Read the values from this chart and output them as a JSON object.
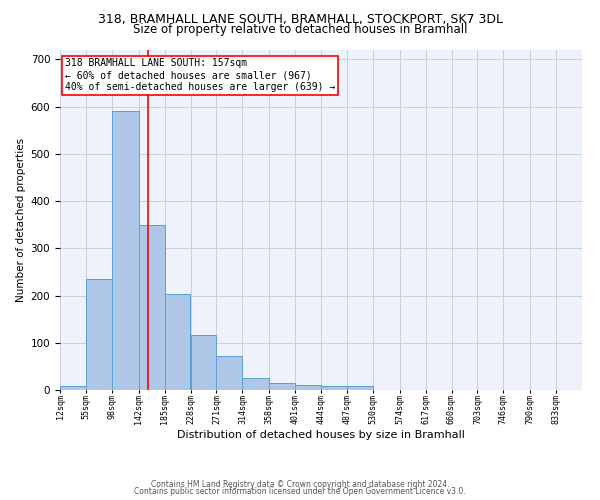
{
  "title_line1": "318, BRAMHALL LANE SOUTH, BRAMHALL, STOCKPORT, SK7 3DL",
  "title_line2": "Size of property relative to detached houses in Bramhall",
  "xlabel": "Distribution of detached houses by size in Bramhall",
  "ylabel": "Number of detached properties",
  "bin_edges": [
    12,
    55,
    98,
    142,
    185,
    228,
    271,
    314,
    358,
    401,
    444,
    487,
    530,
    574,
    617,
    660,
    703,
    746,
    790,
    833,
    876
  ],
  "bar_heights": [
    8,
    235,
    590,
    350,
    203,
    117,
    73,
    25,
    15,
    10,
    8,
    8,
    0,
    0,
    0,
    0,
    0,
    0,
    0,
    0
  ],
  "bar_color": "#aec6e8",
  "bar_edge_color": "#5a9fd4",
  "red_line_x": 157,
  "annotation_text": "318 BRAMHALL LANE SOUTH: 157sqm\n← 60% of detached houses are smaller (967)\n40% of semi-detached houses are larger (639) →",
  "ylim": [
    0,
    720
  ],
  "yticks": [
    0,
    100,
    200,
    300,
    400,
    500,
    600,
    700
  ],
  "footer_line1": "Contains HM Land Registry data © Crown copyright and database right 2024.",
  "footer_line2": "Contains public sector information licensed under the Open Government Licence v3.0.",
  "bg_color": "#eef2fb",
  "grid_color": "#c8cfe0",
  "title1_fontsize": 9,
  "title2_fontsize": 8.5,
  "ylabel_fontsize": 7.5,
  "xlabel_fontsize": 8,
  "ytick_fontsize": 7.5,
  "xtick_fontsize": 6,
  "annot_fontsize": 7,
  "footer_fontsize": 5.5
}
